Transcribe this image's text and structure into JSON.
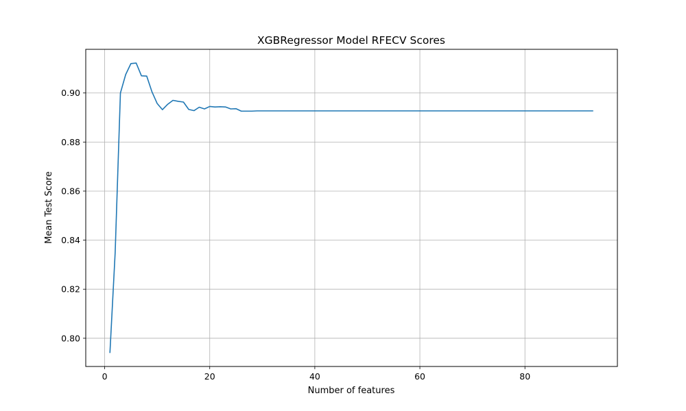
{
  "chart_data": {
    "type": "line",
    "title": "XGBRegressor Model RFECV Scores",
    "xlabel": "Number of features",
    "ylabel": "Mean Test Score",
    "xlim": [
      -3.6,
      97.6
    ],
    "ylim": [
      0.7885,
      0.9178
    ],
    "x_ticks": [
      0,
      20,
      40,
      60,
      80
    ],
    "x_tick_labels": [
      "0",
      "20",
      "40",
      "60",
      "80"
    ],
    "y_ticks": [
      0.8,
      0.82,
      0.84,
      0.86,
      0.88,
      0.9
    ],
    "y_tick_labels": [
      "0.80",
      "0.82",
      "0.84",
      "0.86",
      "0.88",
      "0.90"
    ],
    "grid": true,
    "line_color": "#1f77b4",
    "series": [
      {
        "x": [
          1,
          2,
          3,
          4,
          5,
          6,
          7,
          8,
          9,
          10,
          11,
          12,
          13,
          14,
          15,
          16,
          17,
          18,
          19,
          20,
          21,
          22,
          23,
          24,
          25,
          26,
          27,
          28,
          29,
          30,
          31,
          32,
          33,
          34,
          35,
          36,
          37,
          38,
          39,
          40,
          41,
          42,
          43,
          44,
          45,
          46,
          47,
          48,
          49,
          50,
          51,
          52,
          53,
          54,
          55,
          56,
          57,
          58,
          59,
          60,
          61,
          62,
          63,
          64,
          65,
          66,
          67,
          68,
          69,
          70,
          71,
          72,
          73,
          74,
          75,
          76,
          77,
          78,
          79,
          80,
          81,
          82,
          83,
          84,
          85,
          86,
          87,
          88,
          89,
          90,
          91,
          92,
          93
        ],
        "y": [
          0.794,
          0.835,
          0.9,
          0.9075,
          0.912,
          0.9122,
          0.907,
          0.9069,
          0.9005,
          0.8957,
          0.8932,
          0.8954,
          0.897,
          0.8966,
          0.8963,
          0.8933,
          0.8928,
          0.8942,
          0.8935,
          0.8945,
          0.8943,
          0.8944,
          0.8943,
          0.8935,
          0.8936,
          0.8926,
          0.8926,
          0.8926,
          0.8927,
          0.8927,
          0.8927,
          0.8927,
          0.8927,
          0.8927,
          0.8927,
          0.8927,
          0.8927,
          0.8927,
          0.8927,
          0.8927,
          0.8927,
          0.8927,
          0.8927,
          0.8927,
          0.8927,
          0.8927,
          0.8927,
          0.8927,
          0.8927,
          0.8927,
          0.8927,
          0.8927,
          0.8927,
          0.8927,
          0.8927,
          0.8927,
          0.8927,
          0.8927,
          0.8927,
          0.8927,
          0.8927,
          0.8927,
          0.8927,
          0.8927,
          0.8927,
          0.8927,
          0.8927,
          0.8927,
          0.8927,
          0.8927,
          0.8927,
          0.8927,
          0.8927,
          0.8927,
          0.8927,
          0.8927,
          0.8927,
          0.8927,
          0.8927,
          0.8927,
          0.8927,
          0.8927,
          0.8927,
          0.8927,
          0.8927,
          0.8927,
          0.8927,
          0.8927,
          0.8927,
          0.8927,
          0.8927,
          0.8927,
          0.8927
        ]
      }
    ]
  }
}
